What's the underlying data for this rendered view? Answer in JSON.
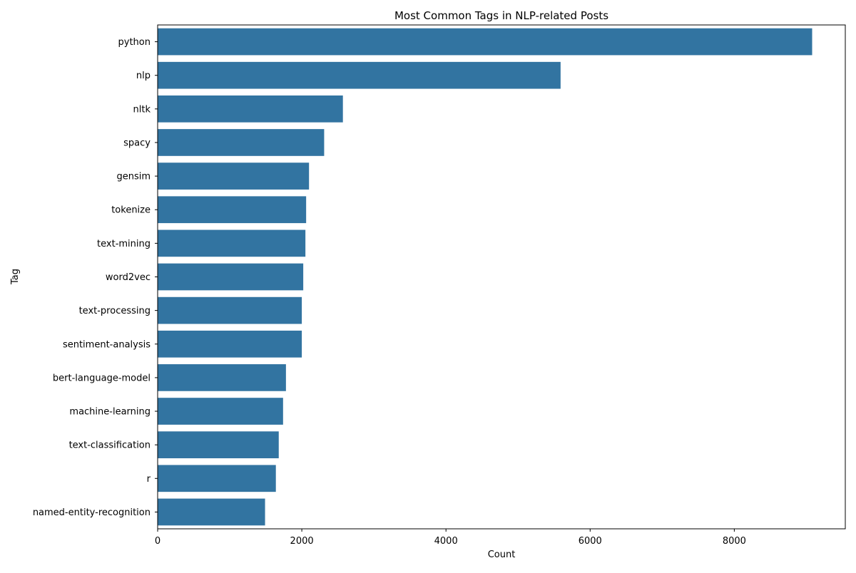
{
  "chart_data": {
    "type": "bar",
    "orientation": "horizontal",
    "title": "Most Common Tags in NLP-related Posts",
    "xlabel": "Count",
    "ylabel": "Tag",
    "xlim": [
      0,
      9540
    ],
    "xticks": [
      0,
      2000,
      4000,
      6000,
      8000
    ],
    "grid": false,
    "bar_color": "#3274a1",
    "categories": [
      "python",
      "nlp",
      "nltk",
      "spacy",
      "gensim",
      "tokenize",
      "text-mining",
      "word2vec",
      "text-processing",
      "sentiment-analysis",
      "bert-language-model",
      "machine-learning",
      "text-classification",
      "r",
      "named-entity-recognition"
    ],
    "values": [
      9080,
      5590,
      2570,
      2310,
      2100,
      2060,
      2050,
      2020,
      2000,
      2000,
      1780,
      1740,
      1680,
      1640,
      1490
    ]
  }
}
